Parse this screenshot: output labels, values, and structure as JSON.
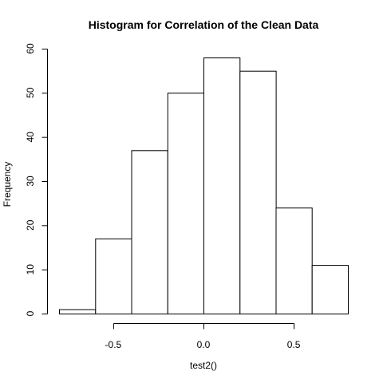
{
  "chart_data": {
    "type": "bar",
    "title": "Histogram for Correlation of the Clean Data",
    "xlabel": "test2()",
    "ylabel": "Frequency",
    "bins": [
      {
        "start": -0.8,
        "end": -0.6,
        "value": 1
      },
      {
        "start": -0.6,
        "end": -0.4,
        "value": 17
      },
      {
        "start": -0.4,
        "end": -0.2,
        "value": 37
      },
      {
        "start": -0.2,
        "end": 0.0,
        "value": 50
      },
      {
        "start": 0.0,
        "end": 0.2,
        "value": 58
      },
      {
        "start": 0.2,
        "end": 0.4,
        "value": 55
      },
      {
        "start": 0.4,
        "end": 0.6,
        "value": 24
      },
      {
        "start": 0.6,
        "end": 0.8,
        "value": 11
      }
    ],
    "xticks": [
      {
        "value": -0.5,
        "label": "-0.5"
      },
      {
        "value": 0.0,
        "label": "0.0"
      },
      {
        "value": 0.5,
        "label": "0.5"
      }
    ],
    "yticks": [
      {
        "value": 0,
        "label": "0"
      },
      {
        "value": 10,
        "label": "10"
      },
      {
        "value": 20,
        "label": "20"
      },
      {
        "value": 30,
        "label": "30"
      },
      {
        "value": 40,
        "label": "40"
      },
      {
        "value": 50,
        "label": "50"
      },
      {
        "value": 60,
        "label": "60"
      }
    ],
    "xlim": [
      -0.8,
      0.8
    ],
    "ylim": [
      0,
      60
    ],
    "grid": false,
    "legend": "none",
    "colors": {
      "bar_fill": "#ffffff",
      "bar_stroke": "#000000",
      "background": "#ffffff"
    }
  }
}
